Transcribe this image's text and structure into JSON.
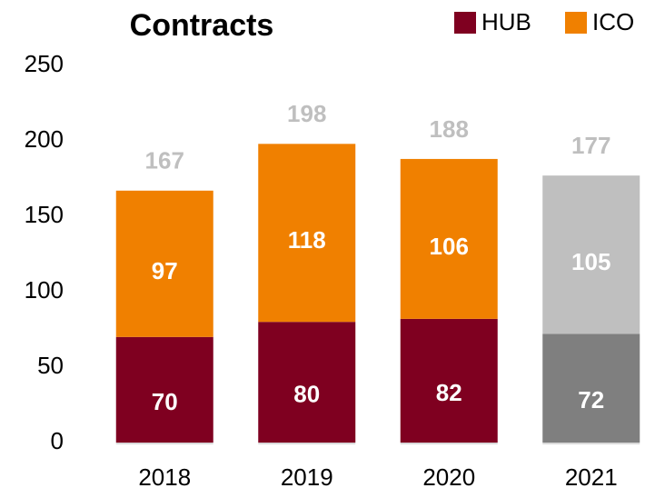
{
  "chart_data": {
    "type": "stacked_bar",
    "title": "Contracts",
    "categories": [
      "2018",
      "2019",
      "2020",
      "2021"
    ],
    "series": [
      {
        "name": "HUB",
        "color": "#7f0020",
        "colors": [
          "#7f0020",
          "#7f0020",
          "#7f0020",
          "#7f7f7f"
        ],
        "values": [
          70,
          80,
          82,
          72
        ]
      },
      {
        "name": "ICO",
        "color": "#f08000",
        "colors": [
          "#f08000",
          "#f08000",
          "#f08000",
          "#bfbfbf"
        ],
        "values": [
          97,
          118,
          106,
          105
        ]
      }
    ],
    "totals": [
      167,
      198,
      188,
      177
    ],
    "ylim": [
      0,
      250
    ],
    "yticks": [
      0,
      50,
      100,
      150,
      200,
      250
    ],
    "grid": false
  }
}
